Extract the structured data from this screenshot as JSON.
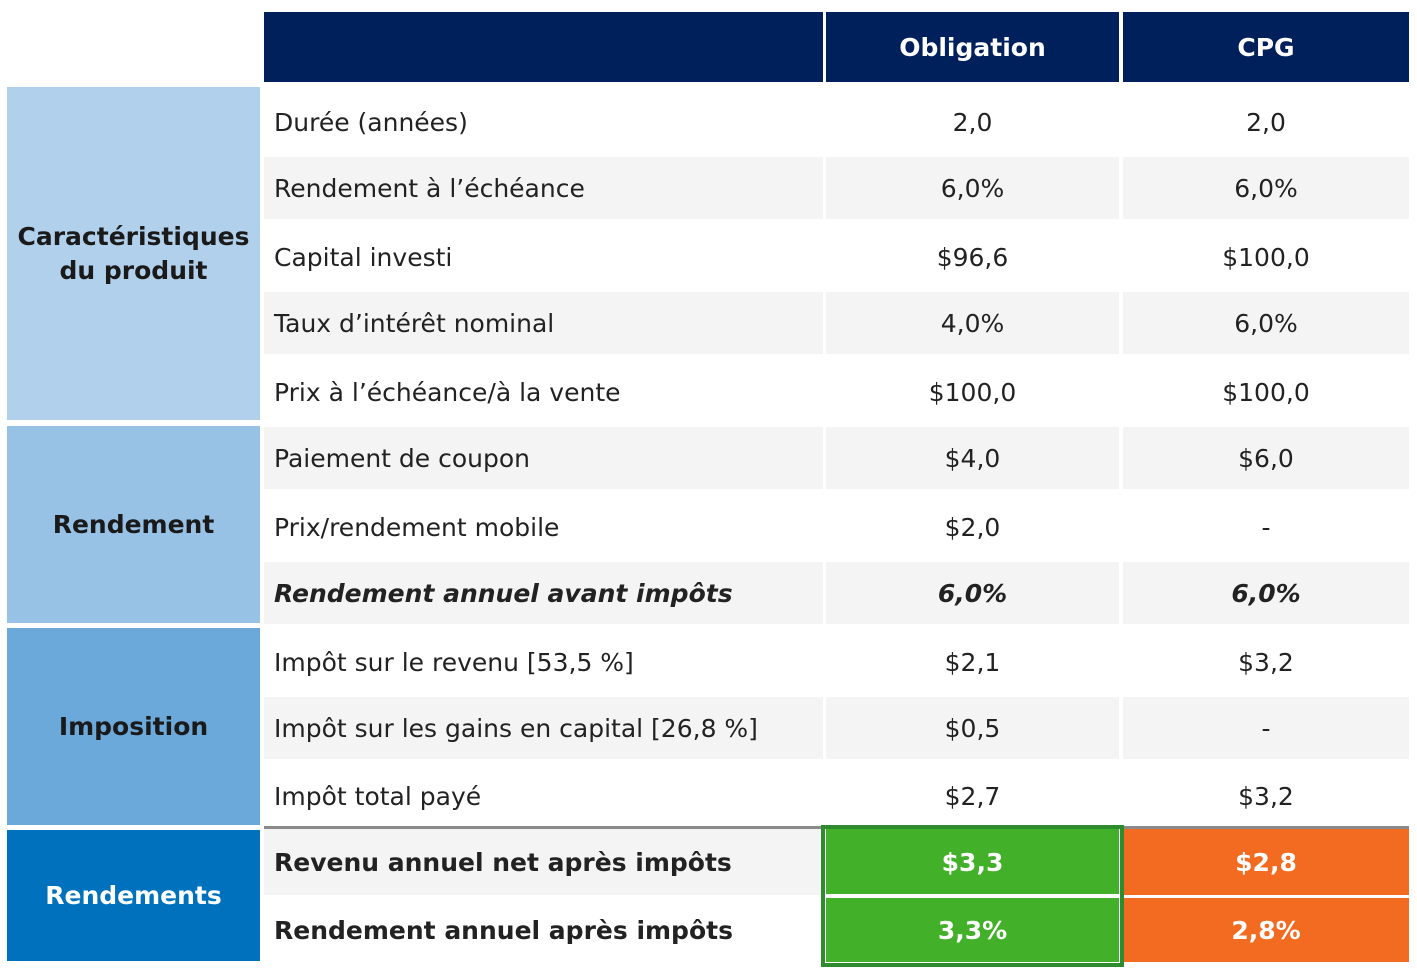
{
  "header": {
    "col1": "Obligation",
    "col2": "CPG"
  },
  "colors": {
    "header": "#00205b",
    "obligation_result": "#43b02a",
    "cpg_result": "#f26b21"
  },
  "sections": [
    {
      "label": "Caractéristiques du produit",
      "color": "#b1d0ec"
    },
    {
      "label": "Rendement",
      "color": "#97c1e5"
    },
    {
      "label": "Imposition",
      "color": "#6aa9da"
    },
    {
      "label": "Rendements",
      "color": "#0072bd"
    }
  ],
  "rows": [
    {
      "label": "Durée (années)",
      "obligation": "2,0",
      "cpg": "2,0"
    },
    {
      "label": "Rendement à l’échéance",
      "obligation": "6,0%",
      "cpg": "6,0%"
    },
    {
      "label": "Capital investi",
      "obligation": "$96,6",
      "cpg": "$100,0"
    },
    {
      "label": "Taux d’intérêt nominal",
      "obligation": "4,0%",
      "cpg": "6,0%"
    },
    {
      "label": "Prix à l’échéance/à la vente",
      "obligation": "$100,0",
      "cpg": "$100,0"
    },
    {
      "label": "Paiement de coupon",
      "obligation": "$4,0",
      "cpg": "$6,0"
    },
    {
      "label": "Prix/rendement mobile",
      "obligation": "$2,0",
      "cpg": "-"
    },
    {
      "label": "Rendement annuel avant impôts",
      "obligation": "6,0%",
      "cpg": "6,0%"
    },
    {
      "label": "Impôt sur le revenu [53,5 %]",
      "obligation": "$2,1",
      "cpg": "$3,2"
    },
    {
      "label": "Impôt sur les gains en capital [26,8 %]",
      "obligation": "$0,5",
      "cpg": "-"
    },
    {
      "label": "Impôt total payé",
      "obligation": "$2,7",
      "cpg": "$3,2"
    },
    {
      "label": "Revenu annuel net après impôts",
      "obligation": "$3,3",
      "cpg": "$2,8"
    },
    {
      "label": "Rendement annuel après impôts",
      "obligation": "3,3%",
      "cpg": "2,8%"
    }
  ]
}
